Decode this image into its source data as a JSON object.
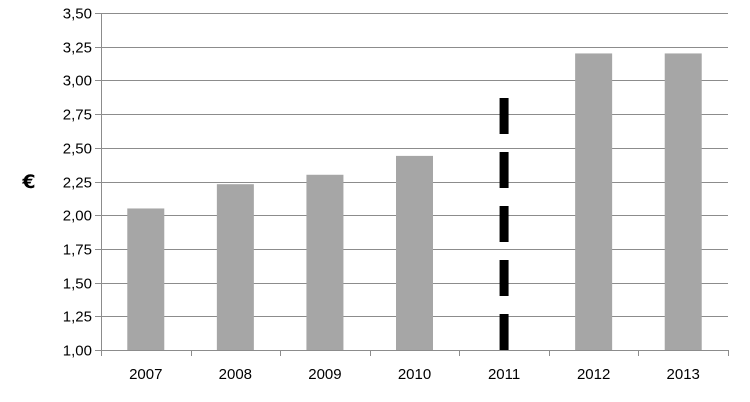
{
  "chart_data": {
    "type": "bar",
    "title": "",
    "xlabel": "",
    "ylabel": "€",
    "categories": [
      "2007",
      "2008",
      "2009",
      "2010",
      "2011",
      "2012",
      "2013"
    ],
    "values": [
      2.05,
      2.23,
      2.3,
      2.44,
      null,
      3.2,
      3.2
    ],
    "ylim": [
      1.0,
      3.5
    ],
    "yticks": [
      "1,00",
      "1,25",
      "1,50",
      "1,75",
      "2,00",
      "2,25",
      "2,50",
      "2,75",
      "3,00",
      "3,25",
      "3,50"
    ],
    "grid": true,
    "legend": "none",
    "bar_color": "#a6a6a6",
    "grid_color": "#8c8c8c",
    "annotations": [
      {
        "kind": "dashed-vertical-line",
        "category": "2011",
        "y_from": 1.0,
        "y_to": 2.95,
        "color": "#000000"
      }
    ]
  }
}
